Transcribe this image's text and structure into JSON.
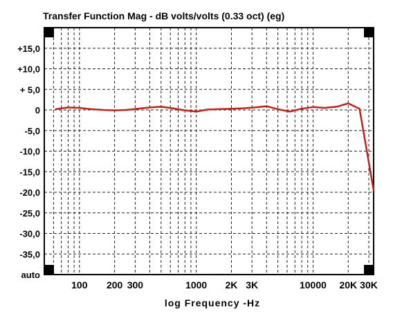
{
  "chart_data": {
    "type": "line",
    "title": "Transfer Function Mag - dB volts/volts (0.33 oct) (eg)",
    "xlabel": "log Frequency -Hz",
    "ylabel": "",
    "x_scale": "log",
    "xlim": [
      50,
      33000
    ],
    "ylim": [
      -40,
      20
    ],
    "grid": true,
    "y_ticks": [
      {
        "value": 15,
        "label": "+15,0"
      },
      {
        "value": 10,
        "label": "+10,0"
      },
      {
        "value": 5,
        "label": "+ 5,0"
      },
      {
        "value": 0,
        "label": "0"
      },
      {
        "value": -5,
        "label": "-5,0"
      },
      {
        "value": -10,
        "label": "-10,0"
      },
      {
        "value": -15,
        "label": "-15,0"
      },
      {
        "value": -20,
        "label": "-20,0"
      },
      {
        "value": -25,
        "label": "-25,0"
      },
      {
        "value": -30,
        "label": "-30,0"
      },
      {
        "value": -35,
        "label": "-35,0"
      },
      {
        "value": -40,
        "label": "auto"
      }
    ],
    "x_ticks": [
      {
        "value": 100,
        "label": "100"
      },
      {
        "value": 200,
        "label": "200"
      },
      {
        "value": 300,
        "label": "300"
      },
      {
        "value": 1000,
        "label": "1000"
      },
      {
        "value": 2000,
        "label": "2K"
      },
      {
        "value": 3000,
        "label": "3K"
      },
      {
        "value": 10000,
        "label": "10000"
      },
      {
        "value": 20000,
        "label": "20K"
      },
      {
        "value": 30000,
        "label": "30K"
      }
    ],
    "series": [
      {
        "color": "#c0201a",
        "x": [
          63,
          80,
          100,
          125,
          160,
          200,
          250,
          315,
          400,
          500,
          630,
          800,
          1000,
          1250,
          1600,
          2000,
          2500,
          3150,
          4000,
          5000,
          6300,
          8000,
          10000,
          12500,
          16000,
          20000,
          25000,
          33000
        ],
        "y": [
          0.2,
          0.6,
          0.5,
          0.2,
          0.0,
          -0.1,
          0.0,
          0.3,
          0.6,
          0.8,
          0.4,
          -0.1,
          -0.4,
          0.1,
          0.2,
          0.3,
          0.4,
          0.6,
          0.9,
          0.2,
          -0.4,
          0.3,
          0.7,
          0.5,
          0.8,
          1.6,
          0.3,
          -19.5
        ]
      }
    ]
  }
}
